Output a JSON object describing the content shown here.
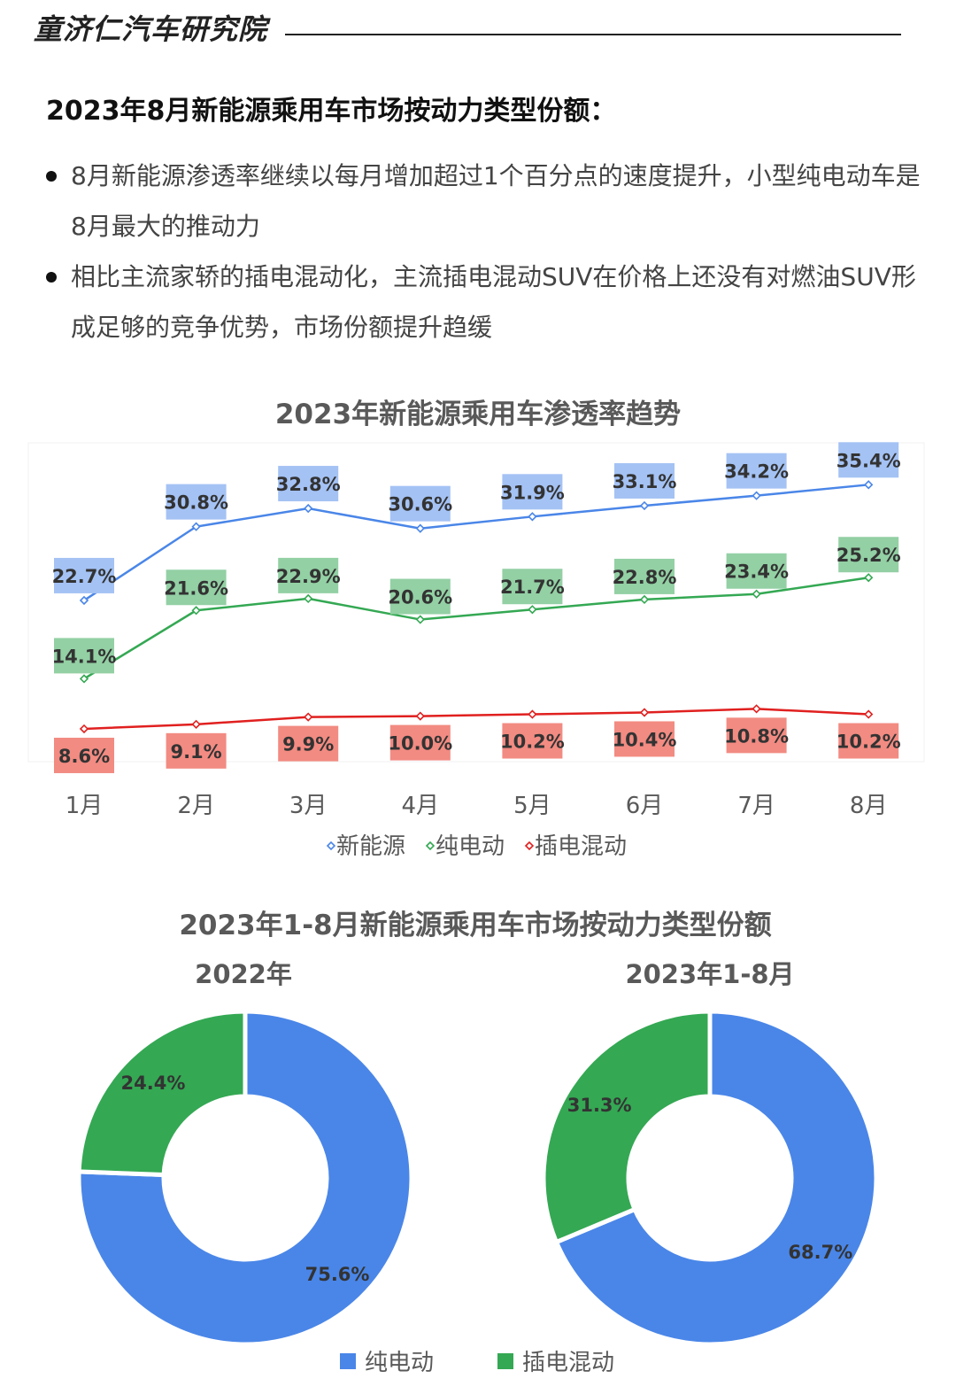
{
  "header": {
    "brand": "童济仁汽车研究院"
  },
  "heading": "2023年8月新能源乘用车市场按动力类型份额：",
  "bullets": [
    "8月新能源渗透率继续以每月增加超过1个百分点的速度提升，小型纯电动车是8月最大的推动力",
    "相比主流家轿的插电混动化，主流插电混动SUV在价格上还没有对燃油SUV形成足够的竞争优势，市场份额提升趋缓"
  ],
  "chart_data": [
    {
      "type": "line",
      "title": "2023年新能源乘用车渗透率趋势",
      "categories": [
        "1月",
        "2月",
        "3月",
        "4月",
        "5月",
        "6月",
        "7月",
        "8月"
      ],
      "unit": "%",
      "ylim": [
        5,
        40
      ],
      "grid": false,
      "legend_position": "bottom",
      "series": [
        {
          "name": "新能源",
          "color": "#4a86e8",
          "label_bg": "#a4c2f4",
          "values": [
            22.7,
            30.8,
            32.8,
            30.6,
            31.9,
            33.1,
            34.2,
            35.4
          ],
          "labels": [
            "22.7%",
            "30.8%",
            "32.8%",
            "30.6%",
            "31.9%",
            "33.1%",
            "34.2%",
            "35.4%"
          ]
        },
        {
          "name": "纯电动",
          "color": "#34a853",
          "label_bg": "#93d0a4",
          "values": [
            14.1,
            21.6,
            22.9,
            20.6,
            21.7,
            22.8,
            23.4,
            25.2
          ],
          "labels": [
            "14.1%",
            "21.6%",
            "22.9%",
            "20.6%",
            "21.7%",
            "22.8%",
            "23.4%",
            "25.2%"
          ]
        },
        {
          "name": "插电混动",
          "color": "#e0201f",
          "label_bg": "#f28b82",
          "values": [
            8.6,
            9.1,
            9.9,
            10.0,
            10.2,
            10.4,
            10.8,
            10.2
          ],
          "labels": [
            "8.6%",
            "9.1%",
            "9.9%",
            "10.0%",
            "10.2%",
            "10.4%",
            "10.8%",
            "10.2%"
          ]
        }
      ]
    },
    {
      "type": "pie",
      "title": "2023年1-8月新能源乘用车市场按动力类型份额",
      "legend": [
        {
          "name": "纯电动",
          "color": "#4a86e8"
        },
        {
          "name": "插电混动",
          "color": "#34a853"
        }
      ],
      "charts": [
        {
          "subtitle": "2022年",
          "slices": [
            {
              "name": "纯电动",
              "value": 75.6,
              "label": "75.6%"
            },
            {
              "name": "插电混动",
              "value": 24.4,
              "label": "24.4%"
            }
          ]
        },
        {
          "subtitle": "2023年1-8月",
          "slices": [
            {
              "name": "纯电动",
              "value": 68.7,
              "label": "68.7%"
            },
            {
              "name": "插电混动",
              "value": 31.3,
              "label": "31.3%"
            }
          ]
        }
      ]
    }
  ]
}
